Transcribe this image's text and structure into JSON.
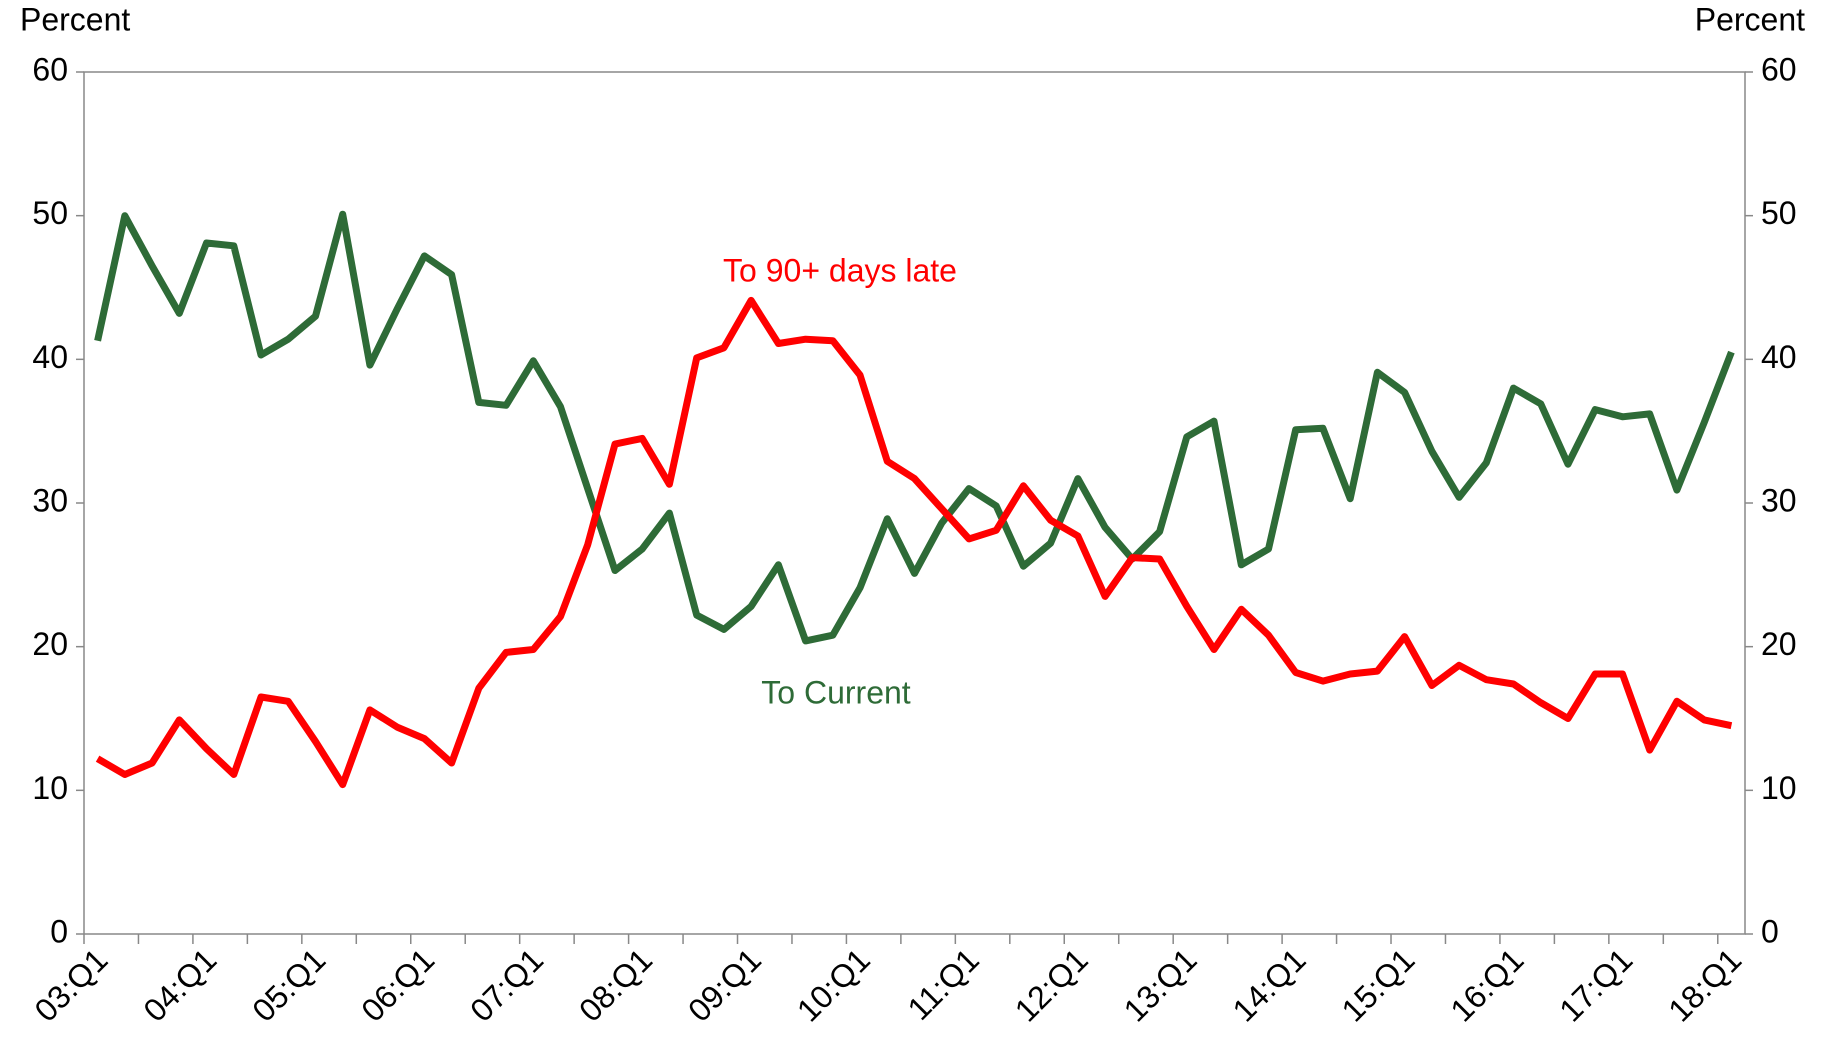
{
  "chart_data": {
    "type": "line",
    "y_label": "Percent",
    "y2_label": "Percent",
    "categories": [
      "03:Q1",
      null,
      null,
      null,
      "04:Q1",
      null,
      null,
      null,
      "05:Q1",
      null,
      null,
      null,
      "06:Q1",
      null,
      null,
      null,
      "07:Q1",
      null,
      null,
      null,
      "08:Q1",
      null,
      null,
      null,
      "09:Q1",
      null,
      null,
      null,
      "10:Q1",
      null,
      null,
      null,
      "11:Q1",
      null,
      null,
      null,
      "12:Q1",
      null,
      null,
      null,
      "13:Q1",
      null,
      null,
      null,
      "14:Q1",
      null,
      null,
      null,
      "15:Q1",
      null,
      null,
      null,
      "16:Q1",
      null,
      null,
      null,
      "17:Q1",
      null,
      null,
      null,
      "18:Q1"
    ],
    "series": [
      {
        "name": "To Current",
        "color": "#2e6b37",
        "values": [
          41.3,
          50,
          46.5,
          43.2,
          48.1,
          47.9,
          40.3,
          41.4,
          43,
          50.1,
          39.6,
          43.5,
          47.2,
          45.9,
          37,
          36.8,
          39.9,
          36.7,
          31,
          25.3,
          26.8,
          29.3,
          22.2,
          21.2,
          22.8,
          25.7,
          20.4,
          20.8,
          24.1,
          28.9,
          25.1,
          28.6,
          31,
          29.8,
          25.6,
          27.2,
          31.7,
          28.3,
          26.1,
          28,
          34.6,
          35.7,
          25.7,
          26.8,
          35.1,
          35.2,
          30.3,
          39.1,
          37.7,
          33.6,
          30.4,
          32.8,
          38,
          36.9,
          32.7,
          36.5,
          36,
          36.2,
          30.9,
          35.6,
          40.5
        ]
      },
      {
        "name": "To 90+ days late",
        "color": "#ff0000",
        "values": [
          12.2,
          11.1,
          11.9,
          14.9,
          12.9,
          11.1,
          16.5,
          16.2,
          13.4,
          10.4,
          15.6,
          14.4,
          13.6,
          11.9,
          17.1,
          19.6,
          19.8,
          22.1,
          27.1,
          34.1,
          34.5,
          31.3,
          40.1,
          40.8,
          44.1,
          41.1,
          41.4,
          41.3,
          38.9,
          32.9,
          31.7,
          29.6,
          27.5,
          28.1,
          31.2,
          28.8,
          27.7,
          23.5,
          26.2,
          26.1,
          22.8,
          19.8,
          22.6,
          20.8,
          18.2,
          17.6,
          18.1,
          18.3,
          20.7,
          17.3,
          18.7,
          17.7,
          17.4,
          16.1,
          15,
          18.1,
          18.1,
          12.8,
          16.2,
          14.9,
          14.5
        ]
      }
    ],
    "ylim": [
      0,
      60
    ],
    "yticks": [
      0,
      10,
      20,
      30,
      40,
      50,
      60
    ],
    "y2lim": [
      0,
      60
    ],
    "y2ticks": [
      0,
      10,
      20,
      30,
      40,
      50,
      60
    ]
  }
}
